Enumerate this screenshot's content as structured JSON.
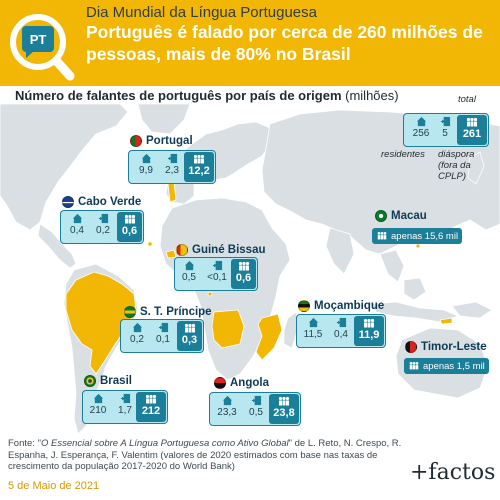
{
  "header": {
    "logo_text": "PT",
    "kicker": "Dia Mundial da Língua Portuguesa",
    "headline": "Português é falado por cerca de 260 milhões de pessoas, mais de 80% no Brasil"
  },
  "subtitle": {
    "main": "Número de falantes de português por país de origem",
    "unit": "(milhões)"
  },
  "legend": {
    "total_label": "total",
    "residents_label": "residentes",
    "diaspora_label": "diáspora",
    "diaspora_note_1": "(fora da",
    "diaspora_note_2": "CPLP)"
  },
  "chart_data": {
    "type": "table",
    "title": "Número de falantes de português por país de origem (milhões)",
    "columns": [
      "residentes",
      "diáspora",
      "total"
    ],
    "rows": [
      {
        "label": "Total",
        "residentes": "256",
        "diaspora": "5",
        "total": "261"
      },
      {
        "label": "Portugal",
        "residentes": "9,9",
        "diaspora": "2,3",
        "total": "12,2"
      },
      {
        "label": "Cabo Verde",
        "residentes": "0,4",
        "diaspora": "0,2",
        "total": "0,6"
      },
      {
        "label": "Guiné Bissau",
        "residentes": "0,5",
        "diaspora": "<0,1",
        "total": "0,6"
      },
      {
        "label": "S. T. Príncipe",
        "residentes": "0,2",
        "diaspora": "0,1",
        "total": "0,3"
      },
      {
        "label": "Brasil",
        "residentes": "210",
        "diaspora": "1,7",
        "total": "212"
      },
      {
        "label": "Angola",
        "residentes": "23,3",
        "diaspora": "0,5",
        "total": "23,8"
      },
      {
        "label": "Moçambique",
        "residentes": "11,5",
        "diaspora": "0,4",
        "total": "11,9"
      }
    ],
    "single_values": [
      {
        "label": "Macau",
        "text": "apenas 15,6 mil"
      },
      {
        "label": "Timor-Leste",
        "text": "apenas 1,5 mil"
      }
    ]
  },
  "footer": {
    "source_prefix": "Fonte: \"",
    "source_title": "O Essencial sobre A Língua Portuguesa como Ativo Global",
    "source_rest": "\" de L. Reto, N. Crespo, R. Espanha, J. Esperança, F. Valentim (valores de 2020 estimados com base nas taxas de crescimento da população 2017-2020 do World Bank)",
    "date": "5 de Maio de 2021",
    "brand": "+factos"
  },
  "colors": {
    "header_bg": "#f2b705",
    "map_land": "#d9dfe3",
    "highlight_land": "#f2b705",
    "box_fill": "#b9e7ef",
    "box_accent": "#1b7f9a",
    "label_text": "#0d3a56"
  },
  "icons": {
    "logo": "magnifier-speech-bubble-icon",
    "residents": "house-icon",
    "diaspora": "exit-door-icon",
    "total": "people-group-icon",
    "land": "world-map"
  }
}
